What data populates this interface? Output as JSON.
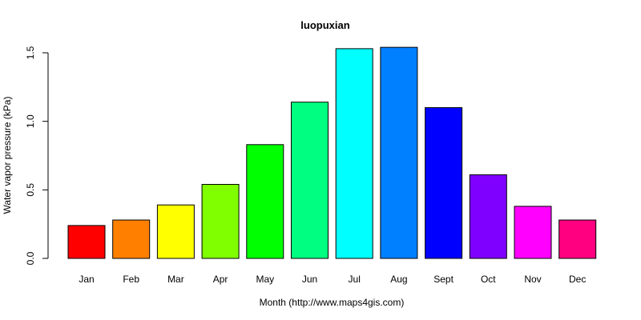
{
  "chart_data": {
    "type": "bar",
    "title": "luopuxian",
    "xlabel": "Month (http://www.maps4gis.com)",
    "ylabel": "Water vapor pressure (kPa)",
    "ylim": [
      0,
      1.5
    ],
    "yticks": [
      "0.0",
      "0.5",
      "1.0",
      "1.5"
    ],
    "grid": false,
    "categories": [
      "Jan",
      "Feb",
      "Mar",
      "Apr",
      "May",
      "Jun",
      "Jul",
      "Aug",
      "Sept",
      "Oct",
      "Nov",
      "Dec"
    ],
    "values": [
      0.24,
      0.28,
      0.39,
      0.54,
      0.83,
      1.14,
      1.53,
      1.54,
      1.1,
      0.61,
      0.38,
      0.28
    ],
    "colors": [
      "#ff0000",
      "#ff8000",
      "#ffff00",
      "#80ff00",
      "#00ff00",
      "#00ff80",
      "#00ffff",
      "#0080ff",
      "#0000ff",
      "#8000ff",
      "#ff00ff",
      "#ff0080"
    ]
  }
}
